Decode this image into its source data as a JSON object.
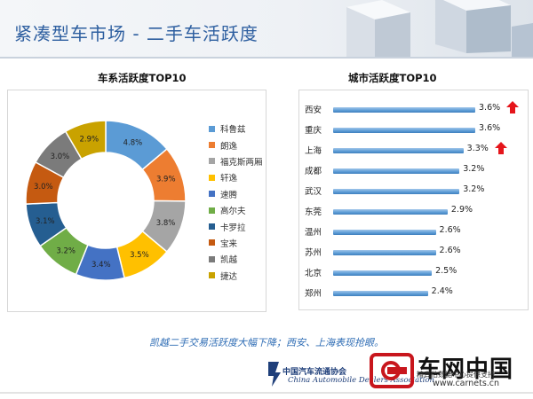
{
  "header": {
    "title": "紧凑型车市场 - 二手车活跃度"
  },
  "caption": "凯越二手交易活跃度大幅下降；西安、上海表现抢眼。",
  "footer": {
    "association_cn": "中国汽车流通协会",
    "association_en": "China Automobile Dealers Association",
    "brand_cn": "车网中国",
    "brand_sub": "精真估数据中心提供支持",
    "brand_url": "www.carnets.cn"
  },
  "colors": {
    "title_blue": "#2e5fa0",
    "bar_blue": "#5b9bd5",
    "arrow_red": "#e5151b",
    "caption_blue": "#2f6db5"
  },
  "chart_data": [
    {
      "type": "pie",
      "donut": true,
      "title": "车系活跃度TOP10",
      "legend_position": "right",
      "categories": [
        "科鲁兹",
        "朗逸",
        "福克斯两厢",
        "轩逸",
        "速腾",
        "高尔夫",
        "卡罗拉",
        "宝来",
        "凯越",
        "捷达"
      ],
      "values": [
        4.8,
        3.9,
        3.8,
        3.5,
        3.4,
        3.2,
        3.1,
        3.0,
        3.0,
        2.9
      ],
      "value_labels": [
        "4.8%",
        "3.9%",
        "3.8%",
        "3.5%",
        "3.4%",
        "3.2%",
        "3.1%",
        "3.0%",
        "3.0%",
        "2.9%"
      ],
      "colors": [
        "#5b9bd5",
        "#ed7d31",
        "#a5a5a5",
        "#ffc000",
        "#4472c4",
        "#70ad47",
        "#255e91",
        "#c55a11",
        "#7b7b7b",
        "#c9a200"
      ]
    },
    {
      "type": "bar",
      "orientation": "horizontal",
      "title": "城市活跃度TOP10",
      "categories": [
        "西安",
        "重庆",
        "上海",
        "成都",
        "武汉",
        "东莞",
        "温州",
        "苏州",
        "北京",
        "郑州"
      ],
      "values": [
        3.6,
        3.6,
        3.3,
        3.2,
        3.2,
        2.9,
        2.6,
        2.6,
        2.5,
        2.4
      ],
      "value_labels": [
        "3.6%",
        "3.6%",
        "3.3%",
        "3.2%",
        "3.2%",
        "2.9%",
        "2.6%",
        "2.6%",
        "2.5%",
        "2.4%"
      ],
      "highlighted": [
        "西安",
        "上海"
      ],
      "xlim": [
        0,
        3.6
      ]
    }
  ]
}
